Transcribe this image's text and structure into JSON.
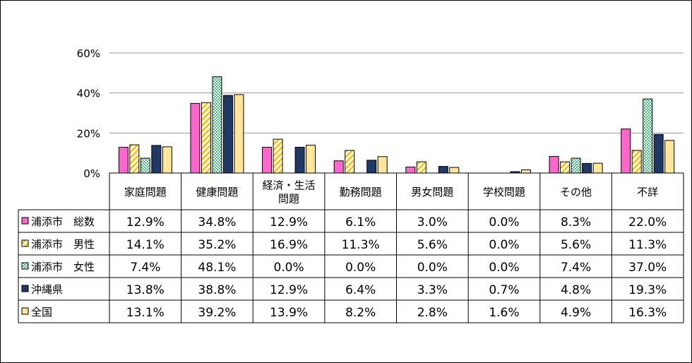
{
  "chart_data": {
    "type": "bar",
    "categories": [
      "家庭問題",
      "健康問題",
      "経済・生活\n問題",
      "勤務問題",
      "男女問題",
      "学校問題",
      "その他",
      "不詳"
    ],
    "series": [
      {
        "name": "浦添市　総数",
        "values": [
          12.9,
          34.8,
          12.9,
          6.1,
          3.0,
          0.0,
          8.3,
          22.0
        ],
        "labels": [
          "12.9%",
          "34.8%",
          "12.9%",
          "6.1%",
          "3.0%",
          "0.0%",
          "8.3%",
          "22.0%"
        ],
        "color": "#ff66cc",
        "pattern": "solid"
      },
      {
        "name": "浦添市　男性",
        "values": [
          14.1,
          35.2,
          16.9,
          11.3,
          5.6,
          0.0,
          5.6,
          11.3
        ],
        "labels": [
          "14.1%",
          "35.2%",
          "16.9%",
          "11.3%",
          "5.6%",
          "0.0%",
          "5.6%",
          "11.3%"
        ],
        "color": "#ffc000",
        "pattern": "diagonal"
      },
      {
        "name": "浦添市　女性",
        "values": [
          7.4,
          48.1,
          0.0,
          0.0,
          0.0,
          0.0,
          7.4,
          37.0
        ],
        "labels": [
          "7.4%",
          "48.1%",
          "0.0%",
          "0.0%",
          "0.0%",
          "0.0%",
          "7.4%",
          "37.0%"
        ],
        "color": "#33aa77",
        "pattern": "dots"
      },
      {
        "name": "沖縄県",
        "values": [
          13.8,
          38.8,
          12.9,
          6.4,
          3.3,
          0.7,
          4.8,
          19.3
        ],
        "labels": [
          "13.8%",
          "38.8%",
          "12.9%",
          "6.4%",
          "3.3%",
          "0.7%",
          "4.8%",
          "19.3%"
        ],
        "color": "#1f3864",
        "pattern": "solid"
      },
      {
        "name": "全国",
        "values": [
          13.1,
          39.2,
          13.9,
          8.2,
          2.8,
          1.6,
          4.9,
          16.3
        ],
        "labels": [
          "13.1%",
          "39.2%",
          "13.9%",
          "8.2%",
          "2.8%",
          "1.6%",
          "4.9%",
          "16.3%"
        ],
        "color": "#ffe699",
        "pattern": "solid"
      }
    ],
    "yticks": [
      "0%",
      "20%",
      "40%",
      "60%"
    ],
    "ylim": [
      0,
      60
    ],
    "grid": true,
    "legend": "data-table-left"
  }
}
